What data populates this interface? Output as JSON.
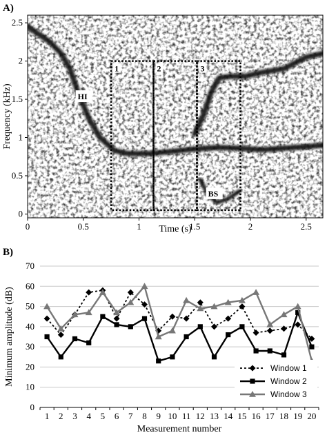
{
  "chart_data": [
    {
      "type": "heatmap",
      "panel_label": "A)",
      "xlabel": "Time (s)",
      "ylabel": "Frequency (kHz)",
      "xlim": [
        0,
        2.65
      ],
      "ylim": [
        -0.05,
        2.6
      ],
      "x_ticks": [
        {
          "v": 0,
          "t": "0"
        },
        {
          "v": 0.5,
          "t": "0.5"
        },
        {
          "v": 1,
          "t": "1"
        },
        {
          "v": 1.5,
          "t": "1.5"
        },
        {
          "v": 2,
          "t": "2"
        },
        {
          "v": 2.5,
          "t": "2.5"
        }
      ],
      "y_ticks": [
        {
          "v": 0,
          "t": "0"
        },
        {
          "v": 0.5,
          "t": "0.5"
        },
        {
          "v": 1,
          "t": "1"
        },
        {
          "v": 1.5,
          "t": "1.5"
        },
        {
          "v": 2,
          "t": "2"
        },
        {
          "v": 2.5,
          "t": "2.5"
        }
      ],
      "windows": [
        {
          "label": "1",
          "x0": 0.75,
          "x1": 1.13,
          "y0": 0.05,
          "y1": 2.0
        },
        {
          "label": "2",
          "x0": 1.13,
          "x1": 1.52,
          "y0": 0.05,
          "y1": 2.0
        },
        {
          "label": "3",
          "x0": 1.52,
          "x1": 1.91,
          "y0": 0.05,
          "y1": 2.0
        }
      ],
      "annotations": [
        {
          "text": "HI",
          "x": 0.45,
          "y": 1.5
        },
        {
          "text": "BS",
          "x": 1.62,
          "y": 0.23
        }
      ],
      "traces": [
        {
          "name": "",
          "points": [
            [
              0.0,
              2.45
            ],
            [
              0.1,
              2.35
            ],
            [
              0.2,
              2.25
            ],
            [
              0.3,
              2.1
            ],
            [
              0.38,
              1.9
            ],
            [
              0.45,
              1.6
            ],
            [
              0.55,
              1.25
            ],
            [
              0.65,
              1.0
            ],
            [
              0.78,
              0.83
            ],
            [
              0.9,
              0.79
            ],
            [
              1.1,
              0.79
            ],
            [
              1.3,
              0.82
            ],
            [
              1.5,
              0.85
            ],
            [
              1.7,
              0.87
            ],
            [
              1.9,
              0.86
            ],
            [
              2.1,
              0.84
            ],
            [
              2.3,
              0.86
            ],
            [
              2.5,
              0.88
            ],
            [
              2.65,
              0.9
            ]
          ]
        },
        {
          "name": "",
          "points": [
            [
              1.5,
              1.05
            ],
            [
              1.58,
              1.3
            ],
            [
              1.65,
              1.6
            ],
            [
              1.72,
              1.78
            ],
            [
              1.82,
              1.8
            ],
            [
              1.95,
              1.8
            ],
            [
              2.1,
              1.85
            ],
            [
              2.3,
              1.9
            ],
            [
              2.5,
              2.05
            ],
            [
              2.65,
              2.1
            ]
          ]
        },
        {
          "name": "",
          "points": [
            [
              1.55,
              0.45
            ],
            [
              1.62,
              0.25
            ],
            [
              1.7,
              0.15
            ],
            [
              1.8,
              0.2
            ],
            [
              1.9,
              0.3
            ]
          ]
        }
      ]
    },
    {
      "type": "line",
      "panel_label": "B)",
      "xlabel": "Measurement number",
      "ylabel": "Minimum amplitude (dB)",
      "ylim": [
        0,
        70
      ],
      "y_ticks": [
        0,
        10,
        20,
        30,
        40,
        50,
        60,
        70
      ],
      "categories": [
        "1",
        "2",
        "3",
        "4",
        "5",
        "6",
        "7",
        "8",
        "9",
        "10",
        "11",
        "12",
        "13",
        "14",
        "15",
        "16",
        "17",
        "18",
        "19",
        "20"
      ],
      "legend_position": "bottom-right",
      "series": [
        {
          "name": "Window 1",
          "style": "dotted",
          "marker": "diamond",
          "color": "#000000",
          "values": [
            44,
            36,
            46,
            57,
            58,
            44,
            57,
            51,
            38,
            45,
            44,
            52,
            40,
            44,
            50,
            37,
            38,
            39,
            41,
            34
          ]
        },
        {
          "name": "Window 2",
          "style": "solid",
          "marker": "square",
          "color": "#000000",
          "values": [
            35,
            25,
            34,
            32,
            45,
            41,
            40,
            44,
            23,
            25,
            35,
            40,
            25,
            36,
            40,
            28,
            28,
            26,
            47,
            30
          ]
        },
        {
          "name": "Window 3",
          "style": "solid",
          "marker": "triangle",
          "color": "#777777",
          "values": [
            50,
            39,
            46,
            47,
            57,
            47,
            52,
            60,
            35,
            38,
            53,
            49,
            50,
            52,
            53,
            57,
            41,
            46,
            50,
            23
          ]
        }
      ]
    }
  ]
}
